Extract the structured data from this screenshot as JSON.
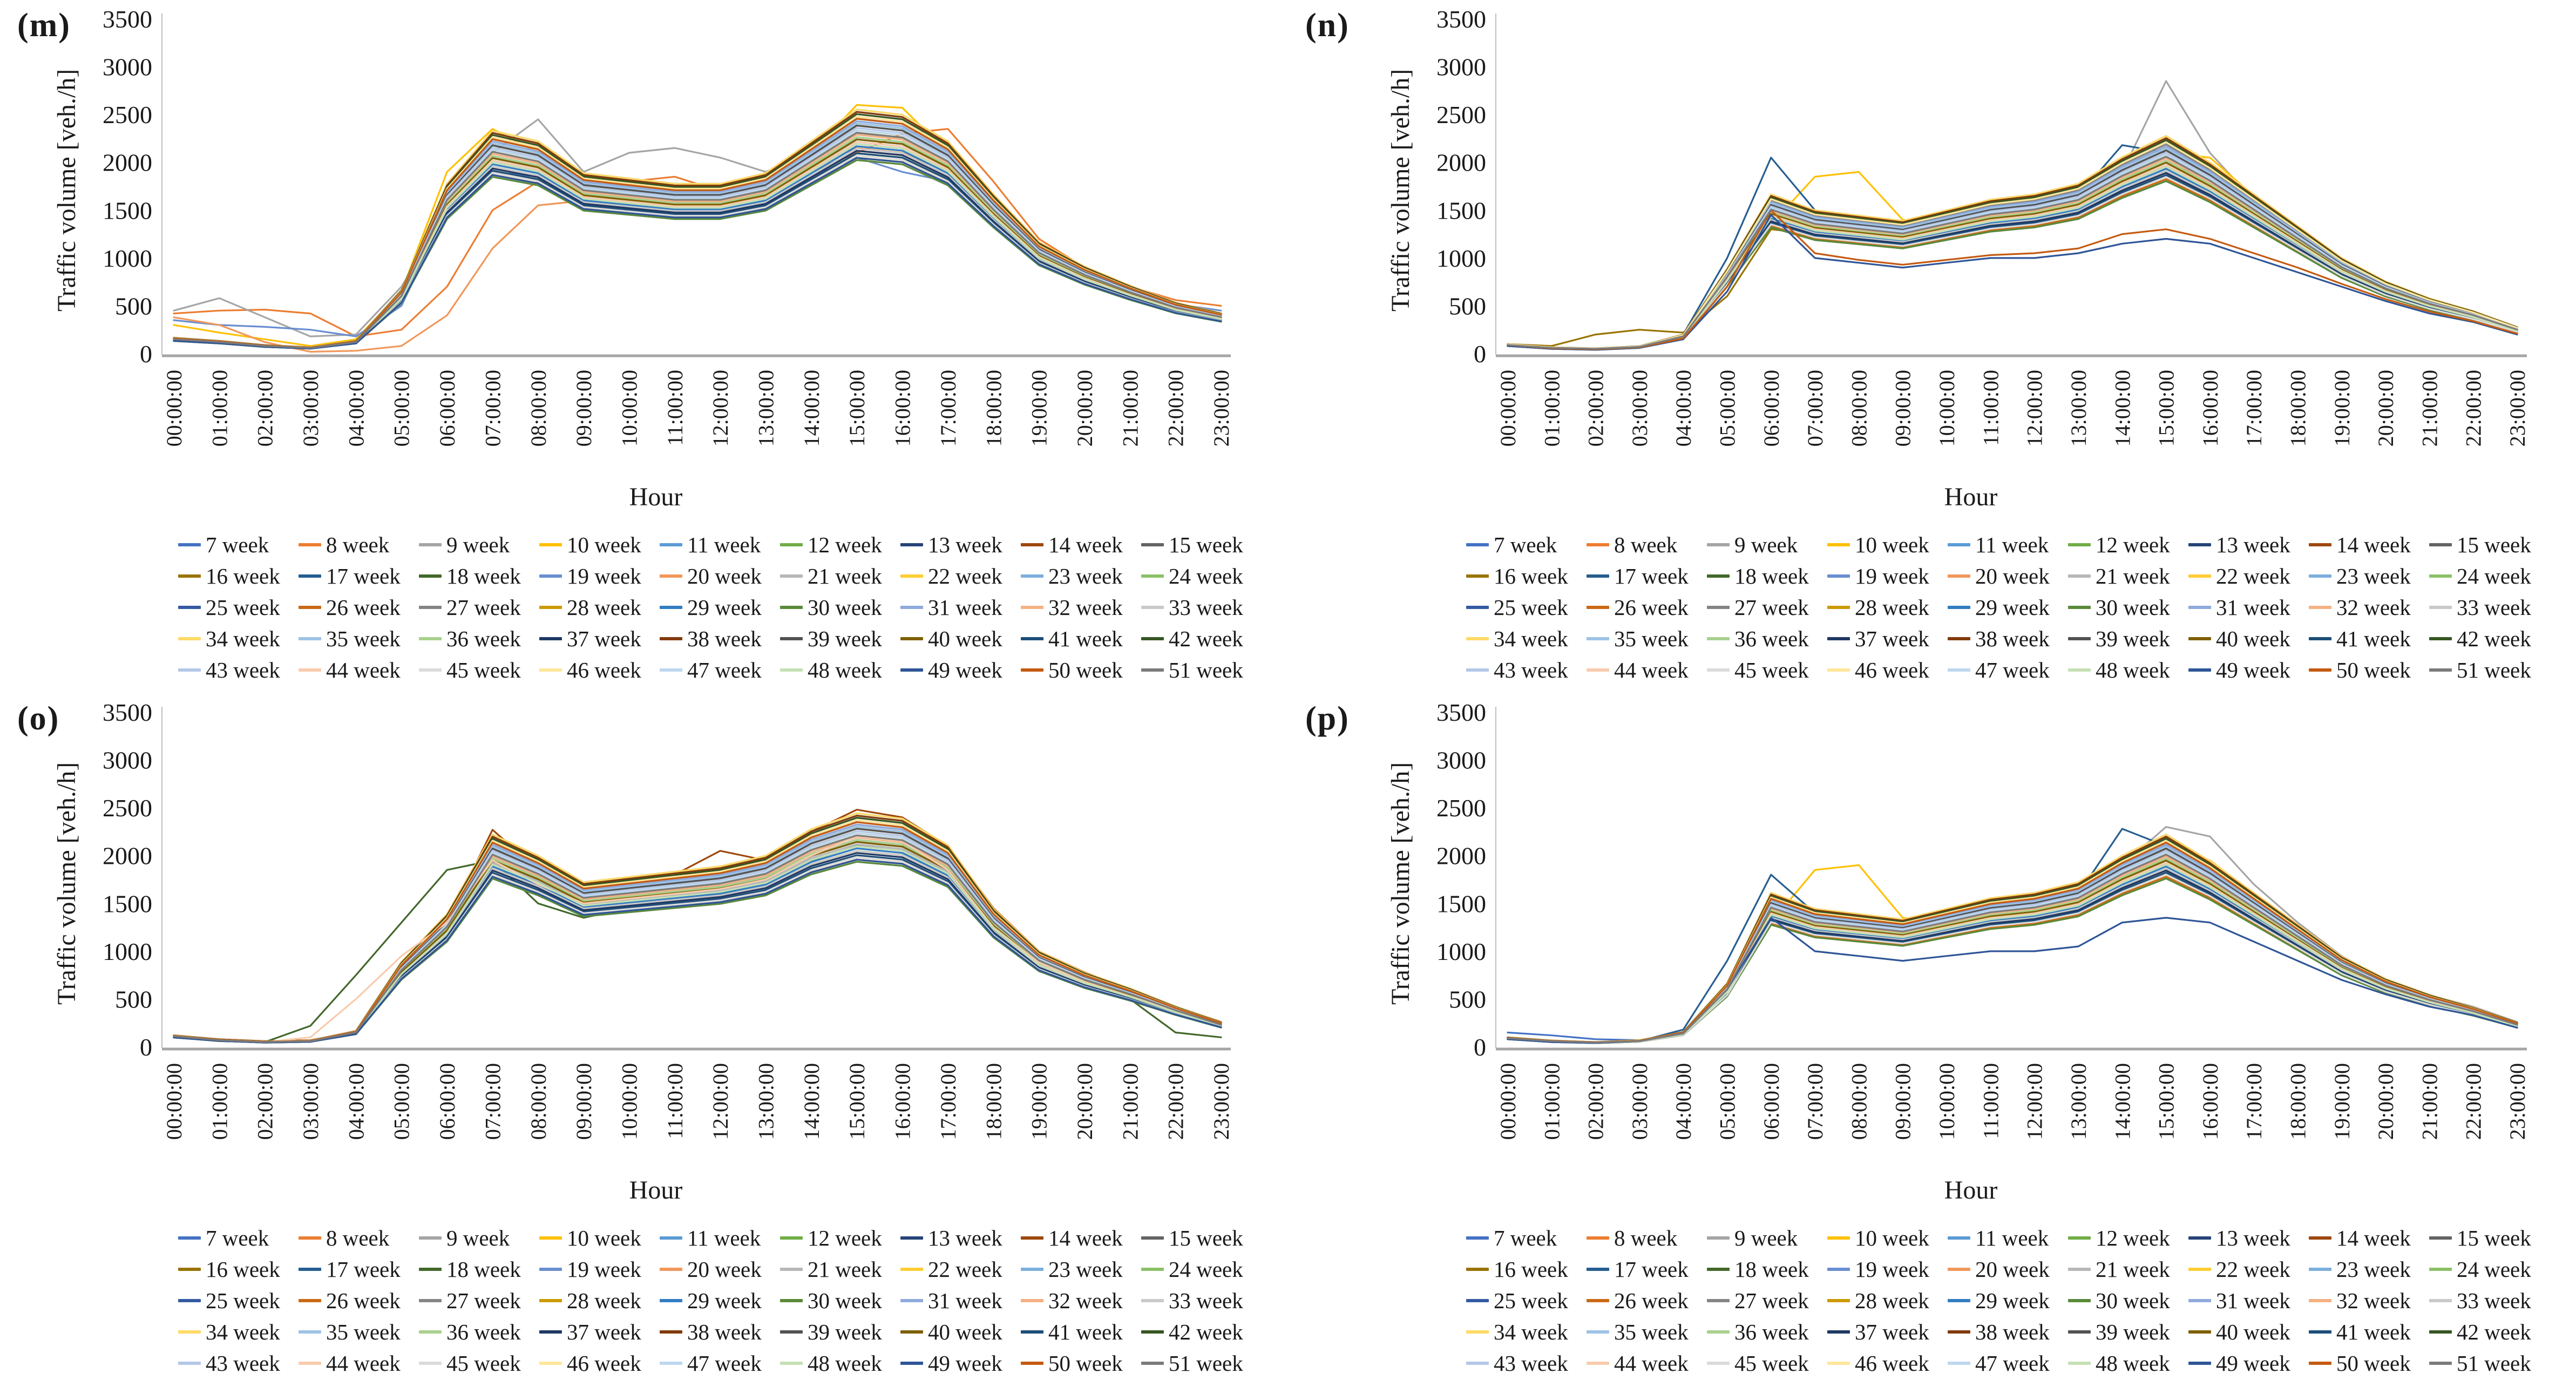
{
  "figure": {
    "panels": [
      {
        "id": "m",
        "label": "(m)"
      },
      {
        "id": "n",
        "label": "(n)"
      },
      {
        "id": "o",
        "label": "(o)"
      },
      {
        "id": "p",
        "label": "(p)"
      }
    ],
    "weeks": [
      "7 week",
      "8 week",
      "9 week",
      "10 week",
      "11 week",
      "12 week",
      "13 week",
      "14 week",
      "15 week",
      "16 week",
      "17 week",
      "18 week",
      "19 week",
      "20 week",
      "21 week",
      "22 week",
      "23 week",
      "24 week",
      "25 week",
      "26 week",
      "27 week",
      "28 week",
      "29 week",
      "30 week",
      "31 week",
      "32 week",
      "33 week",
      "34 week",
      "35 week",
      "36 week",
      "37 week",
      "38 week",
      "39 week",
      "40 week",
      "41 week",
      "42 week",
      "43 week",
      "44 week",
      "45 week",
      "46 week",
      "47 week",
      "48 week",
      "49 week",
      "50 week",
      "51 week"
    ],
    "colors": [
      "#4472C4",
      "#ED7D31",
      "#A5A5A5",
      "#FFC000",
      "#5B9BD5",
      "#70AD47",
      "#264478",
      "#9E480E",
      "#636363",
      "#997300",
      "#255E91",
      "#43682B",
      "#698ED0",
      "#F1975A",
      "#B7B7B7",
      "#FFCD33",
      "#7CAFDD",
      "#8CC168",
      "#335AA1",
      "#CB6A15",
      "#848484",
      "#CC9A00",
      "#327DC2",
      "#5A8A39",
      "#8FAADC",
      "#F5B183",
      "#C9C9C9",
      "#FFDA66",
      "#9DC3E6",
      "#A9D18E",
      "#1F3864",
      "#823B0B",
      "#525252",
      "#7F6000",
      "#1E4E79",
      "#375623",
      "#B4C7E7",
      "#F8CBAD",
      "#DBDBDB",
      "#FFE699",
      "#BDD7EE",
      "#C5E0B4",
      "#2F5597",
      "#C55A11",
      "#7B7B7B"
    ],
    "spread_multipliers": [
      0.88,
      1.057,
      0.995,
      0.932,
      1.11,
      1.047,
      0.984,
      0.922,
      1.099,
      1.037,
      0.974,
      0.911,
      1.089,
      1.026,
      0.963,
      0.901,
      1.078,
      1.016,
      0.953,
      0.89,
      1.068,
      1.005,
      0.943,
      0.88,
      1.057,
      0.995,
      0.932,
      1.11,
      1.047,
      0.984,
      0.922,
      1.099,
      1.037,
      0.974,
      0.911,
      1.089,
      1.026,
      0.963,
      0.901,
      1.078,
      1.016,
      0.953,
      0.89,
      1.068,
      1.005
    ],
    "legend": {
      "rows": 5,
      "columns": 9
    },
    "axis_colors": {
      "y_axis_line": "#BFBFBF",
      "baseline": "#A6A6A6",
      "text": "#1a1a1a"
    }
  },
  "chart_data": [
    {
      "panel": "m",
      "type": "line",
      "title": "",
      "xlabel": "Hour",
      "ylabel": "Traffic volume [veh./h]",
      "ylim": [
        0,
        3500
      ],
      "ytick_step": 500,
      "grid": false,
      "legend_position": "bottom",
      "categories": [
        "00:00:00",
        "01:00:00",
        "02:00:00",
        "03:00:00",
        "04:00:00",
        "05:00:00",
        "06:00:00",
        "07:00:00",
        "08:00:00",
        "09:00:00",
        "10:00:00",
        "11:00:00",
        "12:00:00",
        "13:00:00",
        "14:00:00",
        "15:00:00",
        "16:00:00",
        "17:00:00",
        "18:00:00",
        "19:00:00",
        "20:00:00",
        "21:00:00",
        "22:00:00",
        "23:00:00"
      ],
      "base_profile": [
        150,
        120,
        80,
        60,
        120,
        600,
        1600,
        2100,
        2000,
        1700,
        1650,
        1600,
        1600,
        1700,
        2000,
        2300,
        2250,
        2000,
        1500,
        1050,
        820,
        640,
        480,
        380
      ],
      "outlier_series": {
        "8 week": [
          420,
          450,
          460,
          420,
          180,
          250,
          700,
          1500,
          1800,
          1750,
          1800,
          1850,
          1700,
          1750,
          1900,
          2100,
          2300,
          2350,
          1800,
          1200,
          900,
          700,
          560,
          500
        ],
        "9 week": [
          450,
          580,
          380,
          180,
          200,
          700,
          1500,
          2100,
          2450,
          1900,
          2100,
          2150,
          2050,
          1900,
          2100,
          2300,
          2250,
          2000,
          1500,
          1100,
          850,
          650,
          520,
          420
        ],
        "10 week": [
          300,
          220,
          150,
          80,
          150,
          650,
          1900,
          2350,
          2100,
          1750,
          1700,
          1650,
          1600,
          1750,
          2100,
          2600,
          2570,
          2100,
          1550,
          1100,
          850,
          650,
          500,
          400
        ],
        "19 week": [
          350,
          300,
          280,
          250,
          180,
          500,
          1500,
          1900,
          1850,
          1600,
          1550,
          1500,
          1500,
          1600,
          1850,
          2050,
          1900,
          1800,
          1450,
          1050,
          820,
          640,
          520,
          450
        ],
        "20 week": [
          380,
          300,
          120,
          20,
          30,
          80,
          400,
          1100,
          1550,
          1600,
          1650,
          1700,
          1650,
          1700,
          1950,
          2150,
          2100,
          1900,
          1450,
          1000,
          780,
          600,
          480,
          420
        ]
      }
    },
    {
      "panel": "n",
      "type": "line",
      "title": "",
      "xlabel": "Hour",
      "ylabel": "Traffic volume [veh./h]",
      "ylim": [
        0,
        3500
      ],
      "ytick_step": 500,
      "grid": false,
      "legend_position": "bottom",
      "categories": [
        "00:00:00",
        "01:00:00",
        "02:00:00",
        "03:00:00",
        "04:00:00",
        "05:00:00",
        "06:00:00",
        "07:00:00",
        "08:00:00",
        "09:00:00",
        "10:00:00",
        "11:00:00",
        "12:00:00",
        "13:00:00",
        "14:00:00",
        "15:00:00",
        "16:00:00",
        "17:00:00",
        "18:00:00",
        "19:00:00",
        "20:00:00",
        "21:00:00",
        "22:00:00",
        "23:00:00"
      ],
      "base_profile": [
        90,
        60,
        50,
        70,
        180,
        800,
        1500,
        1350,
        1300,
        1250,
        1350,
        1450,
        1500,
        1600,
        1850,
        2050,
        1800,
        1500,
        1200,
        900,
        680,
        520,
        400,
        250
      ],
      "outlier_series": {
        "9 week": [
          100,
          60,
          50,
          60,
          150,
          700,
          1400,
          1300,
          1250,
          1300,
          1400,
          1500,
          1550,
          1650,
          1900,
          2850,
          2100,
          1600,
          1250,
          950,
          700,
          540,
          420,
          260
        ],
        "10 week": [
          90,
          60,
          50,
          70,
          160,
          700,
          1350,
          1850,
          1900,
          1400,
          1350,
          1400,
          1450,
          1550,
          1800,
          2100,
          2050,
          1650,
          1300,
          950,
          720,
          550,
          420,
          260
        ],
        "16 week": [
          100,
          80,
          200,
          250,
          220,
          600,
          1300,
          1250,
          1200,
          1250,
          1350,
          1450,
          1500,
          1600,
          1800,
          1950,
          1700,
          1400,
          1100,
          850,
          640,
          500,
          380,
          240
        ],
        "17 week": [
          80,
          50,
          40,
          60,
          200,
          1000,
          2050,
          1500,
          1300,
          1200,
          1300,
          1400,
          1500,
          1650,
          2180,
          2100,
          1700,
          1400,
          1100,
          850,
          650,
          500,
          380,
          230
        ],
        "49 week": [
          80,
          50,
          40,
          60,
          150,
          650,
          1450,
          1000,
          950,
          900,
          950,
          1000,
          1000,
          1050,
          1150,
          1200,
          1150,
          1000,
          850,
          700,
          550,
          420,
          330,
          200
        ],
        "50 week": [
          90,
          55,
          45,
          65,
          160,
          700,
          1500,
          1050,
          980,
          930,
          980,
          1030,
          1050,
          1100,
          1250,
          1300,
          1200,
          1050,
          900,
          730,
          570,
          440,
          340,
          210
        ]
      }
    },
    {
      "panel": "o",
      "type": "line",
      "title": "",
      "xlabel": "Hour",
      "ylabel": "Traffic volume [veh./h]",
      "ylim": [
        0,
        3500
      ],
      "ytick_step": 500,
      "grid": false,
      "legend_position": "bottom",
      "categories": [
        "00:00:00",
        "01:00:00",
        "02:00:00",
        "03:00:00",
        "04:00:00",
        "05:00:00",
        "06:00:00",
        "07:00:00",
        "08:00:00",
        "09:00:00",
        "10:00:00",
        "11:00:00",
        "12:00:00",
        "13:00:00",
        "14:00:00",
        "15:00:00",
        "16:00:00",
        "17:00:00",
        "18:00:00",
        "19:00:00",
        "20:00:00",
        "21:00:00",
        "22:00:00",
        "23:00:00"
      ],
      "base_profile": [
        110,
        70,
        50,
        60,
        150,
        800,
        1250,
        2000,
        1800,
        1550,
        1600,
        1650,
        1700,
        1800,
        2050,
        2200,
        2150,
        1900,
        1300,
        900,
        700,
        550,
        380,
        230
      ],
      "outlier_series": {
        "14 week": [
          120,
          80,
          60,
          70,
          160,
          850,
          1300,
          2270,
          1850,
          1600,
          1700,
          1800,
          2050,
          1950,
          2250,
          2480,
          2400,
          2100,
          1450,
          1000,
          780,
          600,
          420,
          260
        ],
        "18 week": [
          100,
          60,
          50,
          220,
          750,
          1300,
          1850,
          1950,
          1500,
          1350,
          1450,
          1550,
          1600,
          1700,
          1950,
          2100,
          2050,
          1800,
          1200,
          850,
          650,
          500,
          150,
          100
        ],
        "44 week": [
          110,
          70,
          50,
          100,
          500,
          950,
          1300,
          1950,
          1700,
          1500,
          1550,
          1600,
          1650,
          1750,
          2000,
          2200,
          2150,
          1850,
          1250,
          880,
          680,
          530,
          370,
          220
        ]
      }
    },
    {
      "panel": "p",
      "type": "line",
      "title": "",
      "xlabel": "Hour",
      "ylabel": "Traffic volume [veh./h]",
      "ylim": [
        0,
        3500
      ],
      "ytick_step": 500,
      "grid": false,
      "legend_position": "bottom",
      "categories": [
        "00:00:00",
        "01:00:00",
        "02:00:00",
        "03:00:00",
        "04:00:00",
        "05:00:00",
        "06:00:00",
        "07:00:00",
        "08:00:00",
        "09:00:00",
        "10:00:00",
        "11:00:00",
        "12:00:00",
        "13:00:00",
        "14:00:00",
        "15:00:00",
        "16:00:00",
        "17:00:00",
        "18:00:00",
        "19:00:00",
        "20:00:00",
        "21:00:00",
        "22:00:00",
        "23:00:00"
      ],
      "base_profile": [
        90,
        60,
        45,
        60,
        140,
        600,
        1450,
        1300,
        1250,
        1200,
        1300,
        1400,
        1450,
        1550,
        1800,
        2000,
        1750,
        1450,
        1150,
        850,
        640,
        490,
        370,
        230
      ],
      "outlier_series": {
        "7 week": [
          150,
          120,
          80,
          70,
          150,
          620,
          1400,
          1300,
          1250,
          1200,
          1300,
          1400,
          1450,
          1550,
          1800,
          2000,
          1750,
          1450,
          1150,
          850,
          640,
          490,
          370,
          230
        ],
        "9 week": [
          100,
          60,
          50,
          60,
          140,
          650,
          1350,
          1250,
          1200,
          1250,
          1350,
          1450,
          1500,
          1600,
          1900,
          2300,
          2200,
          1700,
          1300,
          950,
          700,
          540,
          420,
          260
        ],
        "10 week": [
          90,
          60,
          50,
          70,
          150,
          650,
          1300,
          1850,
          1900,
          1350,
          1300,
          1350,
          1400,
          1500,
          1750,
          2000,
          1950,
          1600,
          1250,
          920,
          700,
          530,
          410,
          250
        ],
        "17 week": [
          80,
          50,
          40,
          60,
          180,
          900,
          1800,
          1400,
          1250,
          1200,
          1250,
          1350,
          1450,
          1600,
          2280,
          2100,
          1700,
          1400,
          1100,
          850,
          650,
          500,
          380,
          230
        ],
        "49 week": [
          80,
          50,
          40,
          60,
          140,
          600,
          1350,
          1000,
          950,
          900,
          950,
          1000,
          1000,
          1050,
          1300,
          1350,
          1300,
          1100,
          900,
          700,
          550,
          420,
          330,
          200
        ]
      }
    }
  ]
}
